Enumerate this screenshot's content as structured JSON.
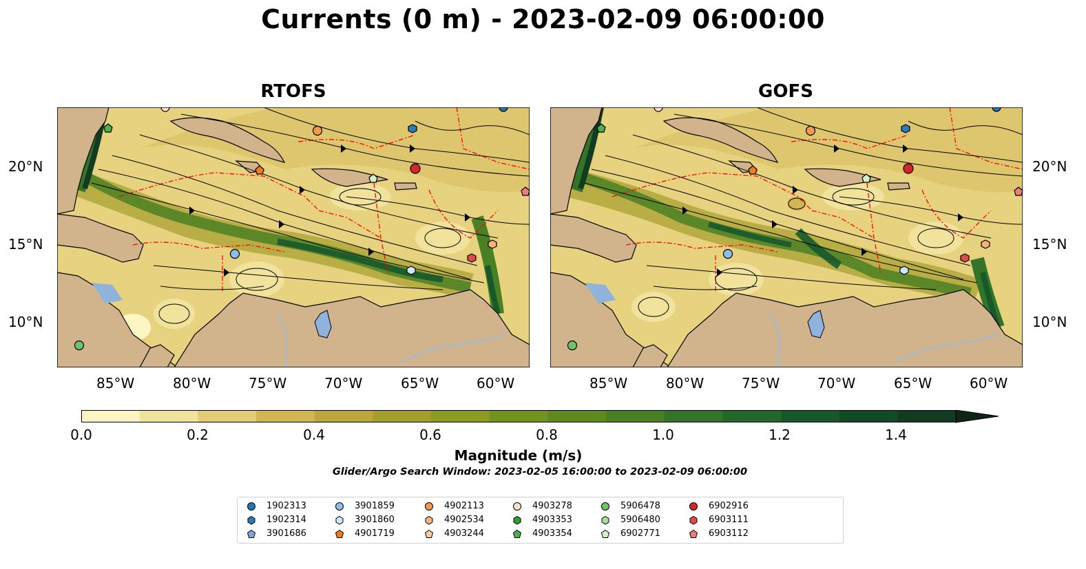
{
  "figure": {
    "title": "Currents (0 m) - 2023-02-09 06:00:00",
    "panels": [
      {
        "id": "rtofs",
        "title": "RTOFS"
      },
      {
        "id": "gofs",
        "title": "GOFS"
      }
    ],
    "x_ticks": [
      "85°W",
      "80°W",
      "75°W",
      "70°W",
      "65°W",
      "60°W"
    ],
    "y_ticks": [
      "20°N",
      "15°N",
      "10°N"
    ],
    "extent": {
      "lon": [
        -89,
        -58
      ],
      "lat": [
        7,
        24
      ]
    },
    "colorbar": {
      "label": "Magnitude (m/s)",
      "ticks": [
        "0.0",
        "0.2",
        "0.4",
        "0.6",
        "0.8",
        "1.0",
        "1.2",
        "1.4"
      ],
      "range": [
        0,
        1.5
      ],
      "extend": "max",
      "colors": [
        "#fdf6c3",
        "#f1e29c",
        "#e2cc74",
        "#d2b653",
        "#bda73d",
        "#a59e2d",
        "#8c9b22",
        "#74921f",
        "#5e8a20",
        "#4a8024",
        "#337428",
        "#22682b",
        "#17592b",
        "#134a26",
        "#123c21",
        "#12301c",
        "#0f2515"
      ]
    },
    "search_window": "Glider/Argo Search Window: 2023-02-05 16:00:00 to 2023-02-09 06:00:00",
    "colors": {
      "land": "#d2b48c",
      "lake": "#8fb3dc",
      "eez": "#ff0000",
      "streamline": "#000000"
    }
  },
  "legend": [
    {
      "label": "1902313",
      "marker": "circle",
      "color": "#1f77b4"
    },
    {
      "label": "1902314",
      "marker": "hexagon",
      "color": "#2c7ab8"
    },
    {
      "label": "3901686",
      "marker": "pentagon",
      "color": "#7ba8d9"
    },
    {
      "label": "3901859",
      "marker": "circle",
      "color": "#8fbfe8"
    },
    {
      "label": "3901860",
      "marker": "hexagon",
      "color": "#cfe6f8"
    },
    {
      "label": "4901719",
      "marker": "pentagon",
      "color": "#f07d1a"
    },
    {
      "label": "4902113",
      "marker": "circle",
      "color": "#f39a4a"
    },
    {
      "label": "4902534",
      "marker": "hexagon",
      "color": "#f7b27a"
    },
    {
      "label": "4903244",
      "marker": "pentagon",
      "color": "#fbcba3"
    },
    {
      "label": "4903278",
      "marker": "circle",
      "color": "#fbe0c8"
    },
    {
      "label": "4903353",
      "marker": "hexagon",
      "color": "#2ca02c"
    },
    {
      "label": "4903354",
      "marker": "pentagon",
      "color": "#4cb050"
    },
    {
      "label": "5906478",
      "marker": "circle",
      "color": "#72c26a"
    },
    {
      "label": "5906480",
      "marker": "hexagon",
      "color": "#a8dd9a"
    },
    {
      "label": "6902771",
      "marker": "pentagon",
      "color": "#d4f2c8"
    },
    {
      "label": "6902916",
      "marker": "circle",
      "color": "#d62728"
    },
    {
      "label": "6903111",
      "marker": "hexagon",
      "color": "#de4a4a"
    },
    {
      "label": "6903112",
      "marker": "pentagon",
      "color": "#ef7d7d"
    }
  ],
  "floats": [
    {
      "id": "1902313",
      "lon": -59.5,
      "lat": 23.8
    },
    {
      "id": "1902314",
      "lon": -65.8,
      "lat": 22.4
    },
    {
      "id": "3901859",
      "lon": -77.4,
      "lat": 14.3
    },
    {
      "id": "3901860",
      "lon": -65.9,
      "lat": 13.2
    },
    {
      "id": "4901719",
      "lon": -75.9,
      "lat": 19.6
    },
    {
      "id": "4902113",
      "lon": -72.0,
      "lat": 22.2
    },
    {
      "id": "4902534",
      "lon": -61.0,
      "lat": 14.9
    },
    {
      "id": "4903278",
      "lon": -81.9,
      "lat": 24.0
    },
    {
      "id": "4903354",
      "lon": -85.8,
      "lat": 22.4
    },
    {
      "id": "5906478",
      "lon": -87.7,
      "lat": 8.4
    },
    {
      "id": "6902771",
      "lon": -68.3,
      "lat": 19.1
    },
    {
      "id": "6902916",
      "lon": -65.4,
      "lat": 19.7
    },
    {
      "id": "6903111",
      "lon": -61.7,
      "lat": 14.0
    },
    {
      "id": "6903112",
      "lon": -58.0,
      "lat": 18.3
    }
  ]
}
